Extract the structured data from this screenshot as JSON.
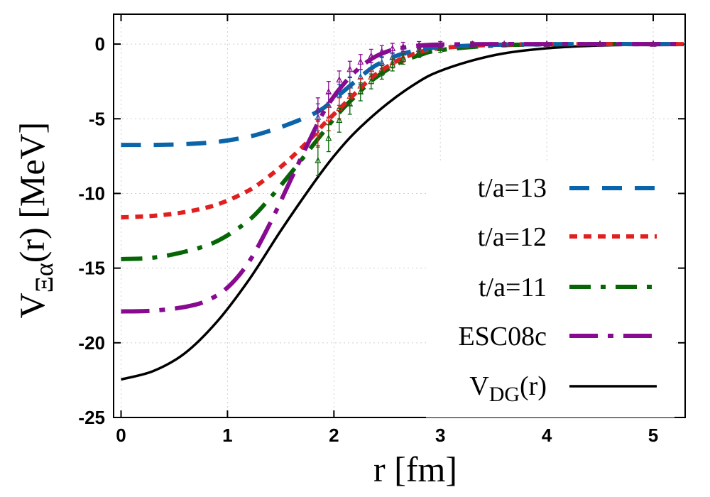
{
  "chart_data": {
    "type": "line",
    "xlabel": "r [fm]",
    "ylabel": {
      "main": "V",
      "sub": "Ξα",
      "rest": "(r) [MeV]"
    },
    "xlim": [
      -0.07,
      5.3
    ],
    "ylim": [
      -25,
      2
    ],
    "xticks": [
      "0",
      "1",
      "2",
      "3",
      "4",
      "5"
    ],
    "xtick_values": [
      0,
      1,
      2,
      3,
      4,
      5
    ],
    "yticks": [
      "0",
      "-5",
      "-10",
      "-15",
      "-20",
      "-25"
    ],
    "ytick_values": [
      0,
      -5,
      -10,
      -15,
      -20,
      -25
    ],
    "grid": true,
    "legend_position": "right",
    "series": [
      {
        "name": "t/a=13",
        "color": "#0a64aa",
        "style": "dash",
        "curve": {
          "x": [
            0.0,
            0.3,
            0.6,
            0.9,
            1.2,
            1.4,
            1.6,
            1.8,
            1.9,
            2.0,
            2.1,
            2.2,
            2.3,
            2.4,
            2.6,
            2.8,
            3.0,
            3.5,
            4.0,
            4.5,
            5.0,
            5.3
          ],
          "y": [
            -6.75,
            -6.75,
            -6.7,
            -6.55,
            -6.2,
            -5.8,
            -5.3,
            -4.7,
            -4.3,
            -3.7,
            -3.1,
            -2.5,
            -1.9,
            -1.4,
            -0.75,
            -0.4,
            -0.2,
            -0.05,
            -0.01,
            0.0,
            0.0,
            0.0
          ]
        },
        "points": {
          "x": [
            1.85,
            1.95,
            2.05,
            2.15,
            2.25,
            2.35,
            2.45,
            2.55,
            2.65,
            2.8,
            3.0,
            3.3,
            3.6,
            4.0,
            4.5,
            5.0
          ],
          "y": [
            -4.9,
            -4.1,
            -3.4,
            -2.8,
            -2.2,
            -1.7,
            -1.25,
            -0.9,
            -0.6,
            -0.35,
            -0.18,
            -0.06,
            -0.02,
            0.0,
            0.0,
            0.0
          ],
          "err": [
            0.9,
            0.8,
            0.7,
            0.6,
            0.5,
            0.45,
            0.4,
            0.35,
            0.3,
            0.25,
            0.2,
            0.15,
            0.1,
            0.08,
            0.06,
            0.05
          ]
        }
      },
      {
        "name": "t/a=12",
        "color": "#e02020",
        "style": "dot",
        "curve": {
          "x": [
            0.0,
            0.3,
            0.6,
            0.9,
            1.2,
            1.4,
            1.6,
            1.8,
            1.9,
            2.0,
            2.1,
            2.2,
            2.3,
            2.4,
            2.6,
            2.8,
            3.0,
            3.5,
            4.0,
            4.5,
            5.0,
            5.3
          ],
          "y": [
            -11.6,
            -11.5,
            -11.25,
            -10.75,
            -9.8,
            -8.8,
            -7.6,
            -6.2,
            -5.4,
            -4.7,
            -4.0,
            -3.3,
            -2.6,
            -2.0,
            -1.1,
            -0.55,
            -0.27,
            -0.05,
            -0.01,
            0.0,
            0.0,
            0.0
          ]
        },
        "points": {
          "x": [
            1.85,
            1.95,
            2.05,
            2.15,
            2.25,
            2.35,
            2.45,
            2.55,
            2.65,
            2.8,
            3.0,
            3.3,
            3.6,
            4.0,
            4.5,
            5.0
          ],
          "y": [
            -6.0,
            -5.0,
            -4.3,
            -3.5,
            -2.8,
            -2.2,
            -1.7,
            -1.25,
            -0.9,
            -0.5,
            -0.25,
            -0.08,
            -0.03,
            0.0,
            0.0,
            0.0
          ],
          "err": [
            0.9,
            0.8,
            0.7,
            0.6,
            0.5,
            0.45,
            0.4,
            0.35,
            0.3,
            0.25,
            0.2,
            0.15,
            0.1,
            0.08,
            0.06,
            0.05
          ]
        }
      },
      {
        "name": "t/a=11",
        "color": "#066606",
        "style": "dashdot",
        "curve": {
          "x": [
            0.0,
            0.3,
            0.6,
            0.9,
            1.2,
            1.4,
            1.6,
            1.8,
            1.9,
            2.0,
            2.1,
            2.2,
            2.3,
            2.4,
            2.6,
            2.8,
            3.0,
            3.5,
            4.0,
            4.5,
            5.0,
            5.3
          ],
          "y": [
            -14.4,
            -14.3,
            -13.9,
            -13.2,
            -11.8,
            -10.3,
            -8.6,
            -6.8,
            -5.9,
            -5.0,
            -4.2,
            -3.5,
            -2.8,
            -2.2,
            -1.3,
            -0.75,
            -0.4,
            -0.1,
            -0.02,
            0.0,
            0.0,
            0.0
          ]
        },
        "points": {
          "x": [
            1.85,
            1.95,
            2.05,
            2.15,
            2.25,
            2.35,
            2.45,
            2.55,
            2.65,
            2.8,
            3.0,
            3.3,
            3.6,
            4.0,
            4.5,
            5.0
          ],
          "y": [
            -7.8,
            -6.3,
            -5.1,
            -4.0,
            -3.2,
            -2.5,
            -1.9,
            -1.4,
            -1.0,
            -0.6,
            -0.3,
            -0.1,
            -0.04,
            -0.01,
            0.0,
            0.0
          ],
          "err": [
            1.0,
            0.9,
            0.8,
            0.7,
            0.6,
            0.5,
            0.45,
            0.4,
            0.35,
            0.3,
            0.25,
            0.2,
            0.15,
            0.1,
            0.08,
            0.06
          ]
        }
      },
      {
        "name": "ESC08c",
        "color": "#880a90",
        "style": "longdash-dot",
        "curve": {
          "x": [
            0.0,
            0.3,
            0.6,
            0.8,
            1.0,
            1.2,
            1.4,
            1.6,
            1.8,
            1.9,
            2.0,
            2.1,
            2.2,
            2.3,
            2.4,
            2.5,
            2.6,
            2.8,
            3.0,
            3.5,
            4.0,
            4.5,
            5.0,
            5.3
          ],
          "y": [
            -17.9,
            -17.85,
            -17.6,
            -17.2,
            -16.3,
            -14.6,
            -12.0,
            -9.0,
            -6.0,
            -4.6,
            -3.5,
            -2.6,
            -1.85,
            -1.25,
            -0.8,
            -0.5,
            -0.3,
            -0.1,
            -0.03,
            0.0,
            0.0,
            0.0,
            0.0,
            0.0
          ]
        },
        "points": {
          "x": [
            1.85,
            1.95,
            2.05,
            2.15,
            2.25,
            2.35,
            2.45,
            2.55,
            2.65,
            2.8,
            3.0,
            3.3,
            3.6,
            4.0,
            4.5,
            5.0
          ],
          "y": [
            -4.4,
            -3.2,
            -2.4,
            -1.7,
            -1.2,
            -0.8,
            -0.5,
            -0.3,
            -0.18,
            -0.08,
            -0.03,
            0.0,
            0.0,
            0.0,
            0.0,
            0.0
          ],
          "err": [
            0.8,
            0.7,
            0.6,
            0.55,
            0.5,
            0.45,
            0.4,
            0.35,
            0.3,
            0.25,
            0.2,
            0.15,
            0.1,
            0.08,
            0.06,
            0.05
          ]
        }
      },
      {
        "name": "V",
        "name_sub": "DG",
        "name_rest": "(r)",
        "color": "#000000",
        "style": "solid",
        "curve": {
          "x": [
            0.0,
            0.3,
            0.6,
            0.9,
            1.2,
            1.5,
            1.8,
            2.0,
            2.2,
            2.5,
            2.8,
            3.0,
            3.3,
            3.6,
            4.0,
            4.4,
            4.8,
            5.3
          ],
          "y": [
            -22.45,
            -21.9,
            -20.7,
            -18.6,
            -15.8,
            -12.5,
            -9.4,
            -7.5,
            -5.9,
            -4.0,
            -2.5,
            -1.8,
            -1.1,
            -0.62,
            -0.28,
            -0.12,
            -0.05,
            -0.02
          ]
        }
      }
    ]
  }
}
